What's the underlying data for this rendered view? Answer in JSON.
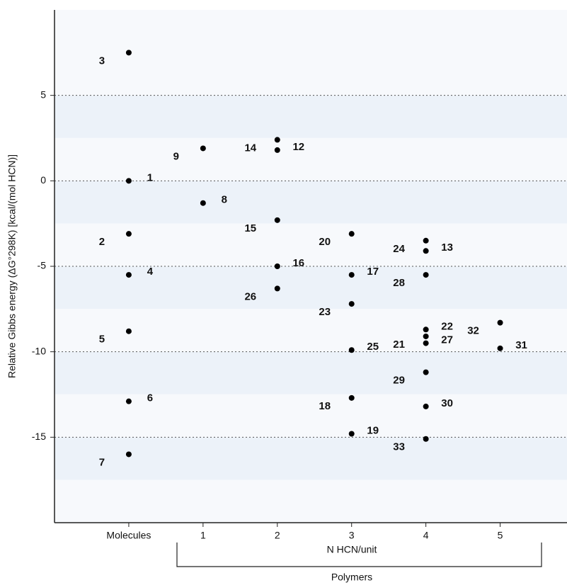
{
  "chart_data": {
    "type": "scatter",
    "y_label": "Relative Gibbs energy (ΔG°298K) [kcal/(mol HCN)]",
    "x_label": "N HCN/unit",
    "group_label": "Polymers",
    "xlim": [
      -1,
      5.9
    ],
    "ylim": [
      -20,
      10
    ],
    "xticks": [
      {
        "value": 0,
        "label": "Molecules"
      },
      1,
      2,
      3,
      4,
      5
    ],
    "yticks": [
      5,
      0,
      -5,
      -10,
      -15
    ],
    "grid": true,
    "color": "#000000",
    "labels": [
      "3",
      "1",
      "2",
      "4",
      "5",
      "6",
      "7",
      "9",
      "8",
      "14",
      "12",
      "15",
      "16",
      "26",
      "20",
      "17",
      "23",
      "25",
      "18",
      "19",
      "24",
      "13",
      "28",
      "22",
      "21",
      "27",
      "29",
      "30",
      "33",
      "32",
      "31"
    ],
    "x": [
      0,
      0,
      0,
      0,
      0,
      0,
      0,
      1,
      1,
      2,
      2,
      2,
      2,
      2,
      3,
      3,
      3,
      3,
      3,
      3,
      4,
      4,
      4,
      4,
      4,
      4,
      4,
      4,
      4,
      5,
      5
    ],
    "values": [
      7.5,
      0,
      -3.1,
      -5.5,
      -8.8,
      -12.9,
      -16,
      1.9,
      -1.3,
      2.4,
      1.8,
      -2.3,
      -5,
      -6.3,
      -3.1,
      -5.5,
      -7.2,
      -9.9,
      -12.7,
      -14.8,
      -3.5,
      -4.1,
      -5.5,
      -8.7,
      -9.1,
      -9.5,
      -11.2,
      -13.2,
      -15.1,
      -8.3,
      -9.8
    ]
  }
}
